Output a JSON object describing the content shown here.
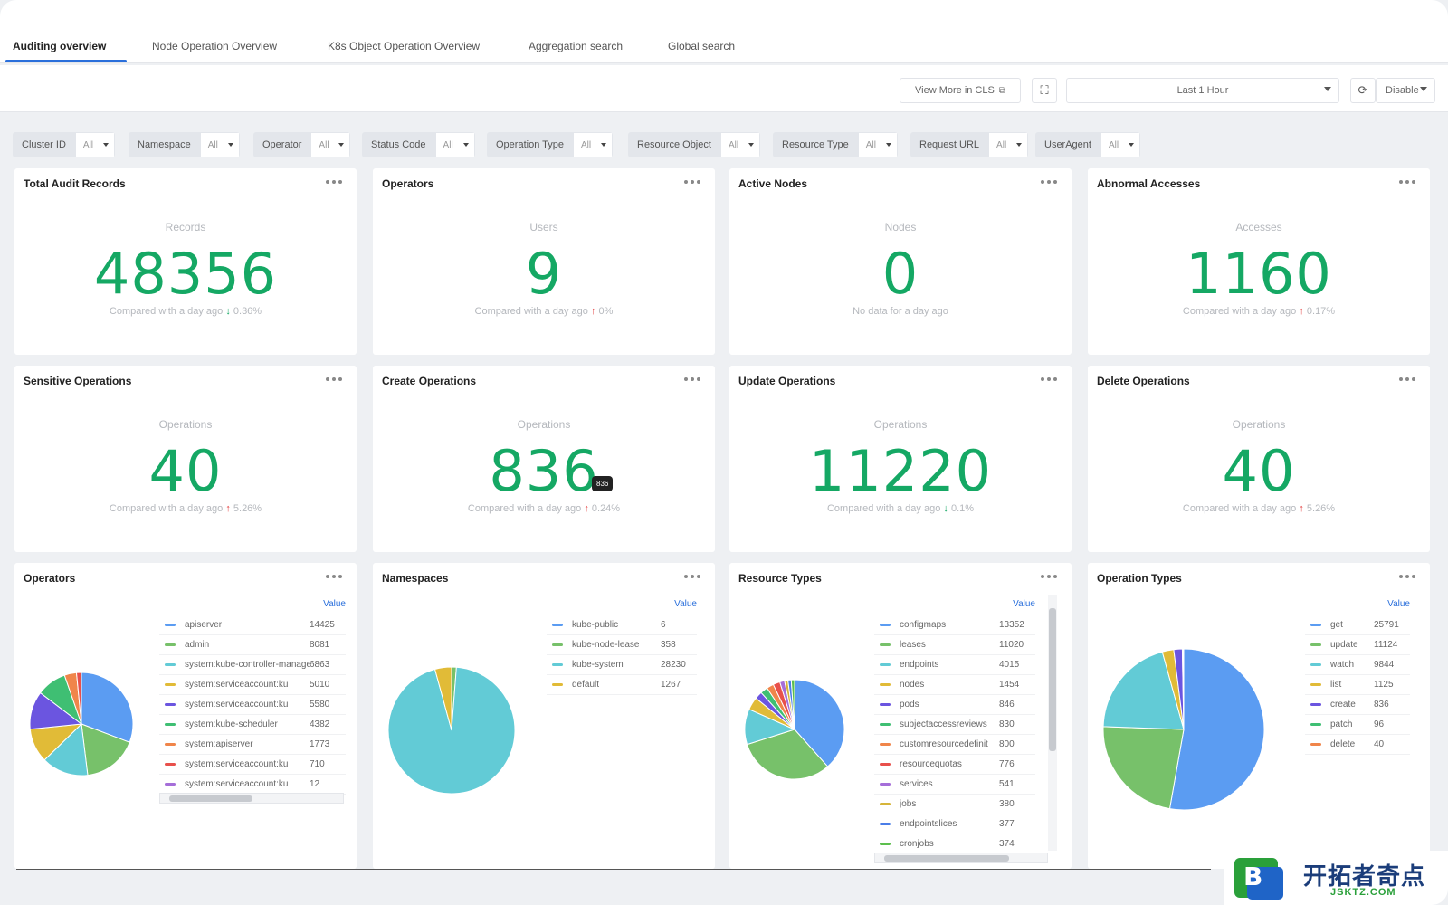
{
  "tabs": [
    {
      "label": "Auditing overview",
      "active": true
    },
    {
      "label": "Node Operation Overview",
      "active": false
    },
    {
      "label": "K8s Object Operation Overview",
      "active": false
    },
    {
      "label": "Aggregation search",
      "active": false
    },
    {
      "label": "Global search",
      "active": false
    }
  ],
  "toolbar": {
    "view_more_label": "View More in CLS",
    "time_range": "Last 1 Hour",
    "refresh_label": "Disable"
  },
  "filters": [
    {
      "label": "Cluster ID",
      "value": "All"
    },
    {
      "label": "Namespace",
      "value": "All"
    },
    {
      "label": "Operator",
      "value": "All"
    },
    {
      "label": "Status Code",
      "value": "All"
    },
    {
      "label": "Operation Type",
      "value": "All"
    },
    {
      "label": "Resource Object",
      "value": "All"
    },
    {
      "label": "Resource Type",
      "value": "All"
    },
    {
      "label": "Request URL",
      "value": "All"
    },
    {
      "label": "UserAgent",
      "value": "All"
    }
  ],
  "stats": [
    {
      "title": "Total Audit Records",
      "sub": "Records",
      "value": "48356",
      "compare": "Compared with a day ago",
      "direction": "down",
      "delta": "0.36%"
    },
    {
      "title": "Operators",
      "sub": "Users",
      "value": "9",
      "compare": "Compared with a day ago",
      "direction": "up",
      "delta": "0%"
    },
    {
      "title": "Active Nodes",
      "sub": "Nodes",
      "value": "0",
      "compare": "No data for a day ago",
      "direction": "",
      "delta": ""
    },
    {
      "title": "Abnormal Accesses",
      "sub": "Accesses",
      "value": "1160",
      "compare": "Compared with a day ago",
      "direction": "up",
      "delta": "0.17%"
    },
    {
      "title": "Sensitive Operations",
      "sub": "Operations",
      "value": "40",
      "compare": "Compared with a day ago",
      "direction": "up",
      "delta": "5.26%"
    },
    {
      "title": "Create Operations",
      "sub": "Operations",
      "value": "836",
      "compare": "Compared with a day ago",
      "direction": "up",
      "delta": "0.24%"
    },
    {
      "title": "Update Operations",
      "sub": "Operations",
      "value": "11220",
      "compare": "Compared with a day ago",
      "direction": "down",
      "delta": "0.1%"
    },
    {
      "title": "Delete Operations",
      "sub": "Operations",
      "value": "40",
      "compare": "Compared with a day ago",
      "direction": "up",
      "delta": "5.26%"
    }
  ],
  "tooltip": {
    "text": "836"
  },
  "chart_data": [
    {
      "type": "pie",
      "title": "Operators",
      "legend_header": "Value",
      "labels": [
        "apiserver",
        "admin",
        "system:kube-controller-manager",
        "system:serviceaccount:ku",
        "system:serviceaccount:ku",
        "system:kube-scheduler",
        "system:apiserver",
        "system:serviceaccount:ku",
        "system:serviceaccount:ku"
      ],
      "values": [
        14425,
        8081,
        6863,
        5010,
        5580,
        4382,
        1773,
        710,
        12
      ],
      "colors": [
        "#5b9cf2",
        "#77c16a",
        "#62cbd6",
        "#e1bb37",
        "#6b55e0",
        "#3fbf73",
        "#f0854a",
        "#e8504b",
        "#a56ed9"
      ]
    },
    {
      "type": "pie",
      "title": "Namespaces",
      "legend_header": "Value",
      "labels": [
        "kube-public",
        "kube-node-lease",
        "kube-system",
        "default"
      ],
      "values": [
        6,
        358,
        28230,
        1267
      ],
      "colors": [
        "#5b9cf2",
        "#77c16a",
        "#62cbd6",
        "#e1bb37"
      ]
    },
    {
      "type": "pie",
      "title": "Resource Types",
      "legend_header": "Value",
      "labels": [
        "configmaps",
        "leases",
        "endpoints",
        "nodes",
        "pods",
        "subjectaccessreviews",
        "customresourcedefinit",
        "resourcequotas",
        "services",
        "jobs",
        "endpointslices",
        "cronjobs"
      ],
      "values": [
        13352,
        11020,
        4015,
        1454,
        846,
        830,
        800,
        776,
        541,
        380,
        377,
        374
      ],
      "colors": [
        "#5b9cf2",
        "#77c16a",
        "#62cbd6",
        "#e1bb37",
        "#6b55e0",
        "#3fbf73",
        "#f0854a",
        "#e8504b",
        "#a56ed9",
        "#d6b53a",
        "#4a7de8",
        "#5cbf4d"
      ]
    },
    {
      "type": "pie",
      "title": "Operation Types",
      "legend_header": "Value",
      "labels": [
        "get",
        "update",
        "watch",
        "list",
        "create",
        "patch",
        "delete"
      ],
      "values": [
        25791,
        11124,
        9844,
        1125,
        836,
        96,
        40
      ],
      "colors": [
        "#5b9cf2",
        "#77c16a",
        "#62cbd6",
        "#e1bb37",
        "#6b55e0",
        "#3fbf73",
        "#f0854a"
      ]
    }
  ],
  "watermark": {
    "cn": "开拓者奇点",
    "en": "JSKTZ.COM",
    "mark_letter": "B"
  }
}
